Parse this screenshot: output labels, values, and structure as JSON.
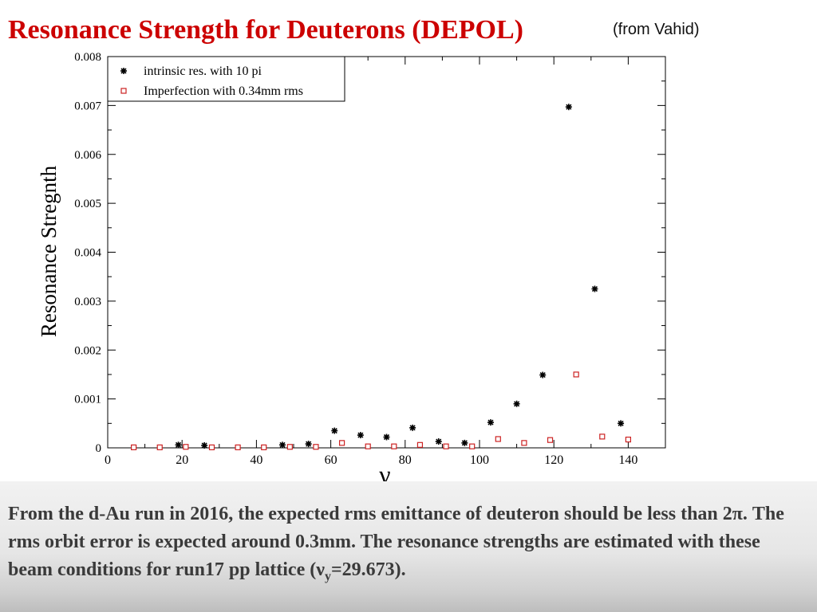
{
  "slide": {
    "title": "Resonance Strength for Deuterons (DEPOL)",
    "title_color": "#cc0000",
    "source_note": "(from Vahid)"
  },
  "caption": {
    "line1": "From the d-Au run in 2016, the expected rms emittance of  deuteron should be less than 2π. The rms orbit error is expected around 0.3mm. The resonance  strengths are estimated with these beam conditions for run17 pp lattice (",
    "nu": "ν",
    "sub": "y",
    "tail": "=29.673)."
  },
  "chart_data": {
    "type": "scatter",
    "title": "",
    "xlabel": "γ",
    "ylabel": "Resonance Stregnth",
    "xlim": [
      0,
      150
    ],
    "ylim": [
      0,
      0.008
    ],
    "xticks": [
      0,
      20,
      40,
      60,
      80,
      100,
      120,
      140
    ],
    "xtick_labels": [
      "0",
      "20",
      "40",
      "60",
      "80",
      "100",
      "120",
      "140"
    ],
    "yticks": [
      0,
      0.001,
      0.002,
      0.003,
      0.004,
      0.005,
      0.006,
      0.007,
      0.008
    ],
    "ytick_labels": [
      "0",
      "0.001",
      "0.002",
      "0.003",
      "0.004",
      "0.005",
      "0.006",
      "0.007",
      "0.008"
    ],
    "grid": false,
    "legend_position": "top-left",
    "series": [
      {
        "name": "intrinsic res. with 10 pi",
        "marker": "star",
        "color": "#000000",
        "x": [
          19,
          26,
          47,
          54,
          61,
          68,
          75,
          82,
          89,
          96,
          103,
          110,
          117,
          124,
          131,
          138
        ],
        "y": [
          6e-05,
          5e-05,
          6e-05,
          8e-05,
          0.00035,
          0.00026,
          0.00022,
          0.00041,
          0.00013,
          0.0001,
          0.00052,
          0.0009,
          0.00149,
          0.00697,
          0.00325,
          0.0005
        ]
      },
      {
        "name": "Imperfection with 0.34mm rms",
        "marker": "open-square",
        "color": "#cc2222",
        "x": [
          7,
          14,
          21,
          28,
          35,
          42,
          49,
          56,
          63,
          70,
          77,
          84,
          91,
          98,
          105,
          112,
          119,
          126,
          133,
          140
        ],
        "y": [
          1e-05,
          1e-05,
          2e-05,
          1e-05,
          1e-05,
          1e-05,
          2e-05,
          2e-05,
          0.0001,
          3e-05,
          3e-05,
          6e-05,
          3e-05,
          3e-05,
          0.00018,
          0.0001,
          0.00016,
          0.0015,
          0.00023,
          0.00017
        ]
      }
    ]
  }
}
